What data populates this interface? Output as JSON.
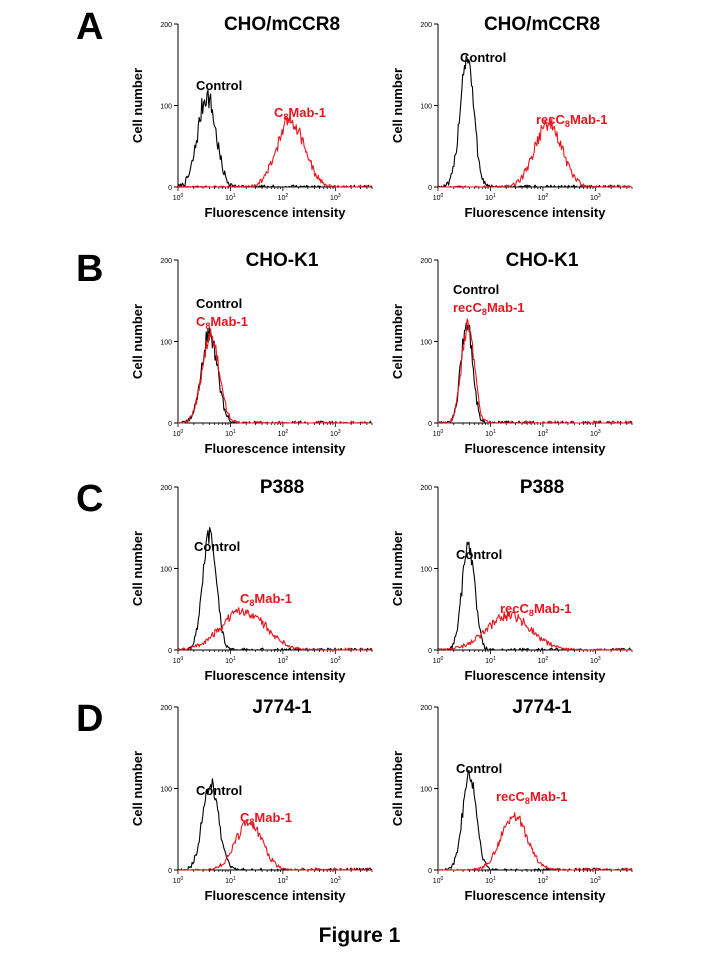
{
  "figure": {
    "caption": "Figure 1",
    "panel_letters": [
      "A",
      "B",
      "C",
      "D"
    ]
  },
  "colors": {
    "control": "#000000",
    "antibody": "#e8151d",
    "axis": "#000000"
  },
  "chart_data": [
    {
      "id": "A-left",
      "type": "histogram",
      "title": "CHO/mCCR8",
      "xlabel": "Fluorescence intensity",
      "ylabel": "Cell number",
      "xscale": "log",
      "xlim": [
        1,
        5000
      ],
      "ylim": [
        0,
        200
      ],
      "yticks": [
        0,
        100,
        200
      ],
      "xticks_exp": [
        0,
        1,
        2,
        3
      ],
      "legend": [
        {
          "text": "Control",
          "sub": "",
          "suffix": "",
          "color": "#000000"
        },
        {
          "text": "C",
          "sub": "8",
          "suffix": "Mab-1",
          "color": "#e8151d"
        }
      ],
      "series": [
        {
          "name": "Control",
          "color": "#000000",
          "peak_log10": 0.55,
          "width_log10": 0.17,
          "height": 112,
          "noise": 18
        },
        {
          "name": "C8Mab-1",
          "color": "#e8151d",
          "peak_log10": 2.15,
          "width_log10": 0.26,
          "height": 82,
          "noise": 12
        }
      ]
    },
    {
      "id": "A-right",
      "type": "histogram",
      "title": "CHO/mCCR8",
      "xlabel": "Fluorescence intensity",
      "ylabel": "Cell number",
      "xscale": "log",
      "xlim": [
        1,
        5000
      ],
      "ylim": [
        0,
        200
      ],
      "yticks": [
        0,
        100,
        200
      ],
      "xticks_exp": [
        0,
        1,
        2,
        3
      ],
      "legend": [
        {
          "text": "Control",
          "sub": "",
          "suffix": "",
          "color": "#000000"
        },
        {
          "text": "recC",
          "sub": "8",
          "suffix": "Mab-1",
          "color": "#e8151d"
        }
      ],
      "series": [
        {
          "name": "Control",
          "color": "#000000",
          "peak_log10": 0.55,
          "width_log10": 0.13,
          "height": 160,
          "noise": 20
        },
        {
          "name": "recC8Mab-1",
          "color": "#e8151d",
          "peak_log10": 2.1,
          "width_log10": 0.26,
          "height": 78,
          "noise": 12
        }
      ]
    },
    {
      "id": "B-left",
      "type": "histogram",
      "title": "CHO-K1",
      "xlabel": "Fluorescence intensity",
      "ylabel": "Cell number",
      "xscale": "log",
      "xlim": [
        1,
        5000
      ],
      "ylim": [
        0,
        200
      ],
      "yticks": [
        0,
        100,
        200
      ],
      "xticks_exp": [
        0,
        1,
        2,
        3
      ],
      "legend": [
        {
          "text": "Control",
          "sub": "",
          "suffix": "",
          "color": "#000000"
        },
        {
          "text": "C",
          "sub": "8",
          "suffix": "Mab-1",
          "color": "#e8151d"
        }
      ],
      "series": [
        {
          "name": "Control",
          "color": "#000000",
          "peak_log10": 0.6,
          "width_log10": 0.15,
          "height": 110,
          "noise": 14
        },
        {
          "name": "C8Mab-1",
          "color": "#e8151d",
          "peak_log10": 0.62,
          "width_log10": 0.16,
          "height": 108,
          "noise": 12
        }
      ]
    },
    {
      "id": "B-right",
      "type": "histogram",
      "title": "CHO-K1",
      "xlabel": "Fluorescence intensity",
      "ylabel": "Cell number",
      "xscale": "log",
      "xlim": [
        1,
        5000
      ],
      "ylim": [
        0,
        200
      ],
      "yticks": [
        0,
        100,
        200
      ],
      "xticks_exp": [
        0,
        1,
        2,
        3
      ],
      "legend": [
        {
          "text": "Control",
          "sub": "",
          "suffix": "",
          "color": "#000000"
        },
        {
          "text": "recC",
          "sub": "8",
          "suffix": "Mab-1",
          "color": "#e8151d"
        }
      ],
      "series": [
        {
          "name": "Control",
          "color": "#000000",
          "peak_log10": 0.55,
          "width_log10": 0.11,
          "height": 125,
          "noise": 16
        },
        {
          "name": "recC8Mab-1",
          "color": "#e8151d",
          "peak_log10": 0.57,
          "width_log10": 0.12,
          "height": 120,
          "noise": 14
        }
      ]
    },
    {
      "id": "C-left",
      "type": "histogram",
      "title": "P388",
      "xlabel": "Fluorescence intensity",
      "ylabel": "Cell number",
      "xscale": "log",
      "xlim": [
        1,
        5000
      ],
      "ylim": [
        0,
        200
      ],
      "yticks": [
        0,
        100,
        200
      ],
      "xticks_exp": [
        0,
        1,
        2,
        3
      ],
      "legend": [
        {
          "text": "Control",
          "sub": "",
          "suffix": "",
          "color": "#000000"
        },
        {
          "text": "C",
          "sub": "8",
          "suffix": "Mab-1",
          "color": "#e8151d"
        }
      ],
      "series": [
        {
          "name": "Control",
          "color": "#000000",
          "peak_log10": 0.6,
          "width_log10": 0.13,
          "height": 140,
          "noise": 14
        },
        {
          "name": "C8Mab-1",
          "color": "#e8151d",
          "peak_log10": 1.25,
          "width_log10": 0.42,
          "height": 48,
          "noise": 8
        }
      ]
    },
    {
      "id": "C-right",
      "type": "histogram",
      "title": "P388",
      "xlabel": "Fluorescence intensity",
      "ylabel": "Cell number",
      "xscale": "log",
      "xlim": [
        1,
        5000
      ],
      "ylim": [
        0,
        200
      ],
      "yticks": [
        0,
        100,
        200
      ],
      "xticks_exp": [
        0,
        1,
        2,
        3
      ],
      "legend": [
        {
          "text": "Control",
          "sub": "",
          "suffix": "",
          "color": "#000000"
        },
        {
          "text": "recC",
          "sub": "8",
          "suffix": "Mab-1",
          "color": "#e8151d"
        }
      ],
      "series": [
        {
          "name": "Control",
          "color": "#000000",
          "peak_log10": 0.58,
          "width_log10": 0.12,
          "height": 130,
          "noise": 14
        },
        {
          "name": "recC8Mab-1",
          "color": "#e8151d",
          "peak_log10": 1.35,
          "width_log10": 0.42,
          "height": 42,
          "noise": 8
        }
      ]
    },
    {
      "id": "D-left",
      "type": "histogram",
      "title": "J774-1",
      "xlabel": "Fluorescence intensity",
      "ylabel": "Cell number",
      "xscale": "log",
      "xlim": [
        1,
        5000
      ],
      "ylim": [
        0,
        200
      ],
      "yticks": [
        0,
        100,
        200
      ],
      "xticks_exp": [
        0,
        1,
        2,
        3
      ],
      "legend": [
        {
          "text": "Control",
          "sub": "",
          "suffix": "",
          "color": "#000000"
        },
        {
          "text": "C",
          "sub": "8",
          "suffix": "Mab-1",
          "color": "#e8151d"
        }
      ],
      "series": [
        {
          "name": "Control",
          "color": "#000000",
          "peak_log10": 0.62,
          "width_log10": 0.15,
          "height": 108,
          "noise": 12
        },
        {
          "name": "C8Mab-1",
          "color": "#e8151d",
          "peak_log10": 1.35,
          "width_log10": 0.25,
          "height": 58,
          "noise": 9
        }
      ]
    },
    {
      "id": "D-right",
      "type": "histogram",
      "title": "J774-1",
      "xlabel": "Fluorescence intensity",
      "ylabel": "Cell number",
      "xscale": "log",
      "xlim": [
        1,
        5000
      ],
      "ylim": [
        0,
        200
      ],
      "yticks": [
        0,
        100,
        200
      ],
      "xticks_exp": [
        0,
        1,
        2,
        3
      ],
      "legend": [
        {
          "text": "Control",
          "sub": "",
          "suffix": "",
          "color": "#000000"
        },
        {
          "text": "recC",
          "sub": "8",
          "suffix": "Mab-1",
          "color": "#e8151d"
        }
      ],
      "series": [
        {
          "name": "Control",
          "color": "#000000",
          "peak_log10": 0.6,
          "width_log10": 0.13,
          "height": 120,
          "noise": 14
        },
        {
          "name": "recC8Mab-1",
          "color": "#e8151d",
          "peak_log10": 1.45,
          "width_log10": 0.25,
          "height": 66,
          "noise": 9
        }
      ]
    }
  ]
}
